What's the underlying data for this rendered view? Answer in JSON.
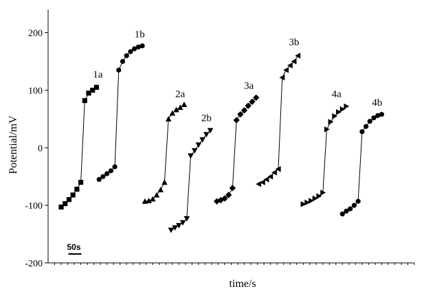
{
  "chart_data": {
    "type": "line",
    "xlabel": "time/s",
    "ylabel": "Potential/mV",
    "ylim": [
      -200,
      240
    ],
    "xlim": [
      0,
      560
    ],
    "yticks": [
      -200,
      -100,
      0,
      100,
      200
    ],
    "x_minor_tick_step": 10,
    "scale_bar": {
      "label": "50s",
      "length": 20
    },
    "grid": false,
    "series": [
      {
        "name": "1a",
        "marker": "square",
        "x": [
          20,
          26,
          32,
          38,
          44,
          50,
          56,
          62,
          68,
          74
        ],
        "y": [
          -103,
          -97,
          -90,
          -82,
          -72,
          -60,
          82,
          95,
          100,
          105
        ]
      },
      {
        "name": "1b",
        "marker": "circle",
        "x": [
          78,
          84,
          90,
          96,
          102,
          108,
          114,
          120,
          126,
          132,
          138,
          144
        ],
        "y": [
          -55,
          -50,
          -45,
          -40,
          -33,
          135,
          150,
          160,
          167,
          172,
          175,
          177
        ]
      },
      {
        "name": "2a",
        "marker": "triangle-up",
        "x": [
          148,
          154,
          160,
          166,
          172,
          178,
          184,
          190,
          196,
          202,
          208
        ],
        "y": [
          -93,
          -92,
          -89,
          -82,
          -73,
          -60,
          50,
          60,
          66,
          70,
          75
        ]
      },
      {
        "name": "2b",
        "marker": "triangle-down",
        "x": [
          188,
          194,
          200,
          206,
          212,
          218,
          224,
          230,
          236,
          242,
          248
        ],
        "y": [
          -143,
          -139,
          -135,
          -130,
          -123,
          -14,
          -5,
          5,
          14,
          23,
          30
        ]
      },
      {
        "name": "3a",
        "marker": "diamond",
        "x": [
          258,
          264,
          270,
          276,
          282,
          288,
          294,
          300,
          306,
          312,
          318
        ],
        "y": [
          -93,
          -91,
          -88,
          -82,
          -70,
          48,
          58,
          65,
          73,
          80,
          87
        ]
      },
      {
        "name": "3b",
        "marker": "triangle-left",
        "x": [
          322,
          328,
          334,
          340,
          346,
          352,
          358,
          364,
          370,
          376,
          382
        ],
        "y": [
          -63,
          -60,
          -55,
          -50,
          -43,
          -37,
          122,
          135,
          143,
          150,
          160
        ]
      },
      {
        "name": "4a",
        "marker": "triangle-right",
        "x": [
          390,
          396,
          402,
          408,
          414,
          420,
          426,
          432,
          438,
          444,
          450,
          456
        ],
        "y": [
          -98,
          -95,
          -92,
          -88,
          -84,
          -78,
          32,
          45,
          55,
          62,
          67,
          72
        ]
      },
      {
        "name": "4b",
        "marker": "circle",
        "x": [
          450,
          456,
          462,
          468,
          474,
          480,
          486,
          492,
          498,
          504,
          510
        ],
        "y": [
          -115,
          -110,
          -106,
          -100,
          -93,
          28,
          37,
          46,
          52,
          56,
          58
        ]
      }
    ],
    "annotations": [
      {
        "text": "1a",
        "x": 76,
        "y": 122
      },
      {
        "text": "1b",
        "x": 140,
        "y": 192
      },
      {
        "text": "2a",
        "x": 202,
        "y": 88
      },
      {
        "text": "2b",
        "x": 242,
        "y": 46
      },
      {
        "text": "3a",
        "x": 307,
        "y": 102
      },
      {
        "text": "3b",
        "x": 376,
        "y": 178
      },
      {
        "text": "4a",
        "x": 441,
        "y": 88
      },
      {
        "text": "4b",
        "x": 503,
        "y": 73
      }
    ]
  }
}
